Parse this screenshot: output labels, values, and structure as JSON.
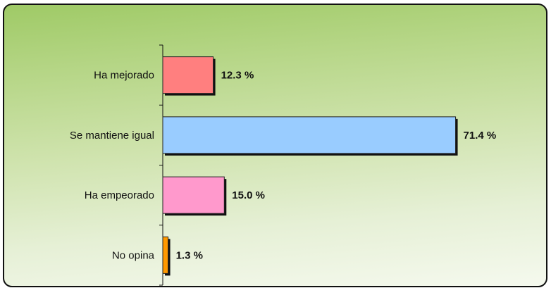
{
  "chart_data": {
    "type": "bar",
    "orientation": "horizontal",
    "categories": [
      "Ha mejorado",
      "Se mantiene igual",
      "Ha empeorado",
      "No opina"
    ],
    "values": [
      12.3,
      71.4,
      15.0,
      1.3
    ],
    "value_labels": [
      "12.3 %",
      "71.4 %",
      "15.0 %",
      "1.3 %"
    ],
    "bar_colors": [
      "#ff7f7f",
      "#99ccff",
      "#ff99cc",
      "#ff9900"
    ],
    "title": "",
    "xlabel": "",
    "ylabel": "",
    "xlim": [
      0,
      100
    ],
    "grid": false,
    "legend": "none"
  },
  "colors": {
    "background_top": "#9fca66",
    "background_bottom": "#f5f9ee",
    "frame_border": "#111111",
    "bar_shadow": "#111111"
  }
}
